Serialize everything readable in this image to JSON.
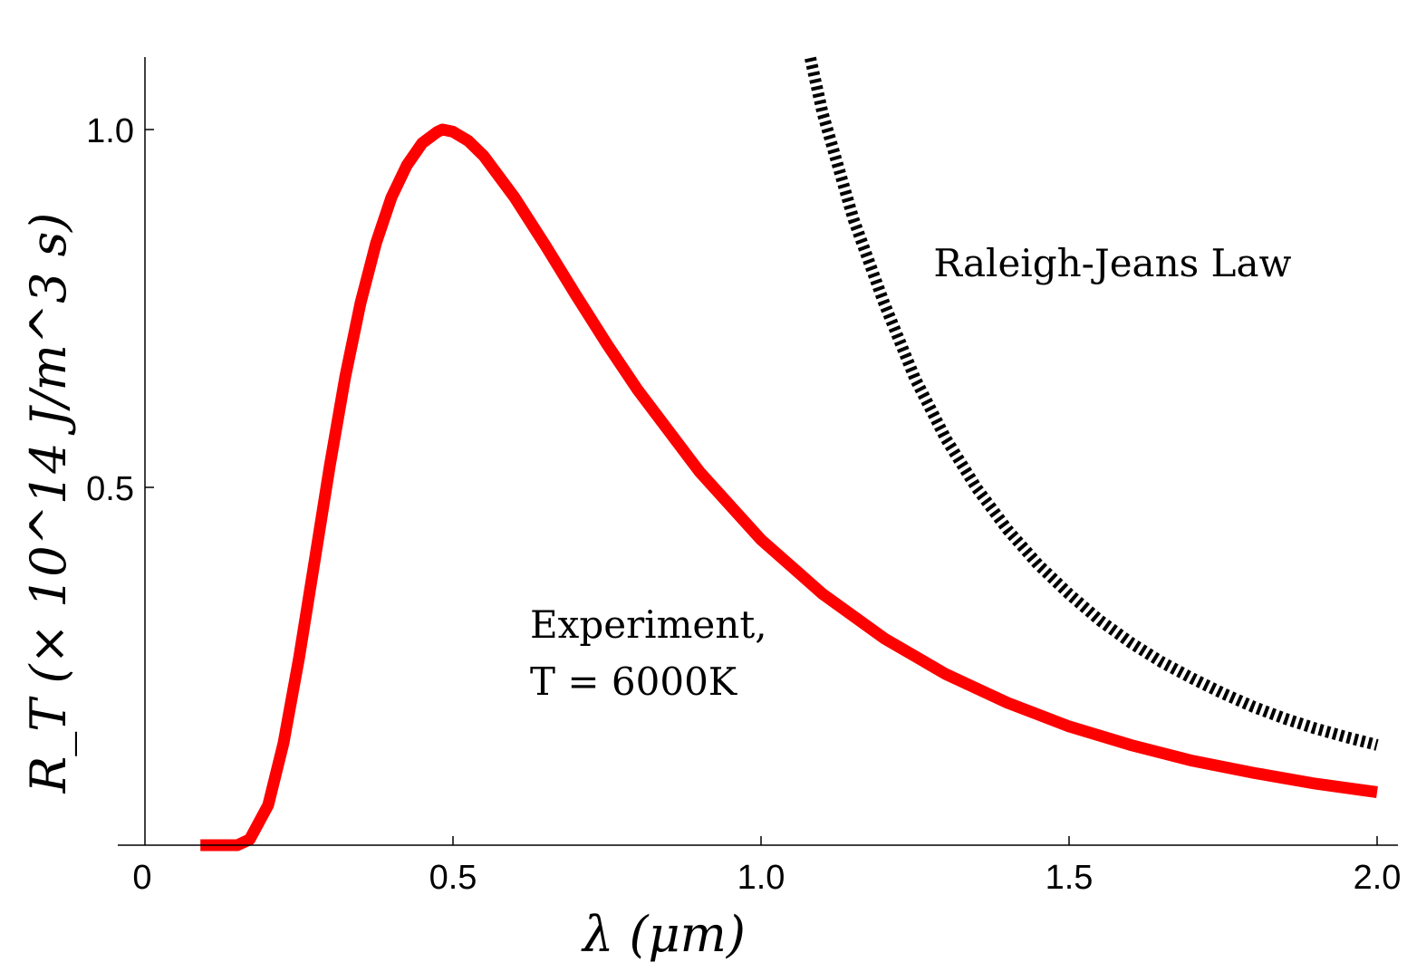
{
  "chart_data": {
    "type": "line",
    "xlabel": "λ (μm)",
    "ylabel": "R_T (× 10^14 J/m^3 s)",
    "xlim": [
      0,
      2.05
    ],
    "ylim": [
      0,
      1.1
    ],
    "x_ticks": [
      {
        "value": 0,
        "label": "0"
      },
      {
        "value": 0.5,
        "label": "0.5"
      },
      {
        "value": 1.0,
        "label": "1.0"
      },
      {
        "value": 1.5,
        "label": "1.5"
      },
      {
        "value": 2.0,
        "label": "2.0"
      }
    ],
    "y_ticks": [
      {
        "value": 0.5,
        "label": "0.5"
      },
      {
        "value": 1.0,
        "label": "1.0"
      }
    ],
    "grid": false,
    "series": [
      {
        "name": "Experiment, T = 6000K",
        "color": "#ff0000",
        "style": "solid",
        "x": [
          0.09,
          0.12,
          0.15,
          0.17,
          0.2,
          0.225,
          0.25,
          0.275,
          0.3,
          0.325,
          0.35,
          0.375,
          0.4,
          0.425,
          0.45,
          0.475,
          0.483,
          0.5,
          0.525,
          0.55,
          0.6,
          0.65,
          0.7,
          0.75,
          0.8,
          0.9,
          1.0,
          1.1,
          1.2,
          1.3,
          1.4,
          1.5,
          1.6,
          1.7,
          1.8,
          1.9,
          2.0
        ],
        "y": [
          0.0,
          0.0,
          0.0,
          0.008,
          0.056,
          0.143,
          0.261,
          0.395,
          0.53,
          0.654,
          0.758,
          0.841,
          0.905,
          0.95,
          0.981,
          0.997,
          1.0,
          0.997,
          0.984,
          0.963,
          0.905,
          0.838,
          0.768,
          0.7,
          0.636,
          0.522,
          0.427,
          0.351,
          0.289,
          0.239,
          0.199,
          0.166,
          0.14,
          0.118,
          0.101,
          0.086,
          0.074
        ]
      },
      {
        "name": "Raleigh-Jeans Law",
        "color": "#000000",
        "style": "dashed",
        "x": [
          1.08,
          1.1,
          1.15,
          1.2,
          1.25,
          1.3,
          1.35,
          1.4,
          1.45,
          1.5,
          1.55,
          1.6,
          1.65,
          1.7,
          1.75,
          1.8,
          1.85,
          1.9,
          1.95,
          2.0
        ],
        "y": [
          1.1,
          1.023,
          0.875,
          0.757,
          0.652,
          0.568,
          0.499,
          0.441,
          0.392,
          0.351,
          0.314,
          0.283,
          0.256,
          0.233,
          0.212,
          0.193,
          0.177,
          0.163,
          0.151,
          0.14
        ]
      }
    ],
    "annotations": [
      {
        "text": "Raleigh-Jeans Law",
        "x": 1.28,
        "y": 0.795
      },
      {
        "text": "Experiment,",
        "x": 0.625,
        "y": 0.29
      },
      {
        "text": "T = 6000K",
        "x": 0.625,
        "y": 0.21
      }
    ]
  }
}
